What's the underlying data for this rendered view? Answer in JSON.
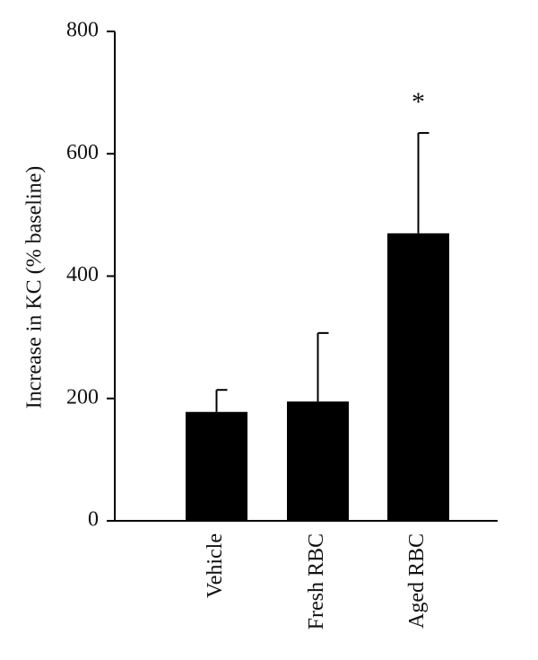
{
  "chart_data": {
    "type": "bar",
    "y_label": "Increase in KC (% baseline)",
    "categories": [
      "Vehicle",
      "Fresh RBC",
      "Aged RBC"
    ],
    "values": [
      178,
      195,
      470
    ],
    "errors": [
      36,
      112,
      164
    ],
    "color": "#000000",
    "annotation": "*",
    "ylim": [
      0,
      800
    ],
    "yticks": [
      0,
      200,
      400,
      600,
      800
    ],
    "grid": false
  }
}
